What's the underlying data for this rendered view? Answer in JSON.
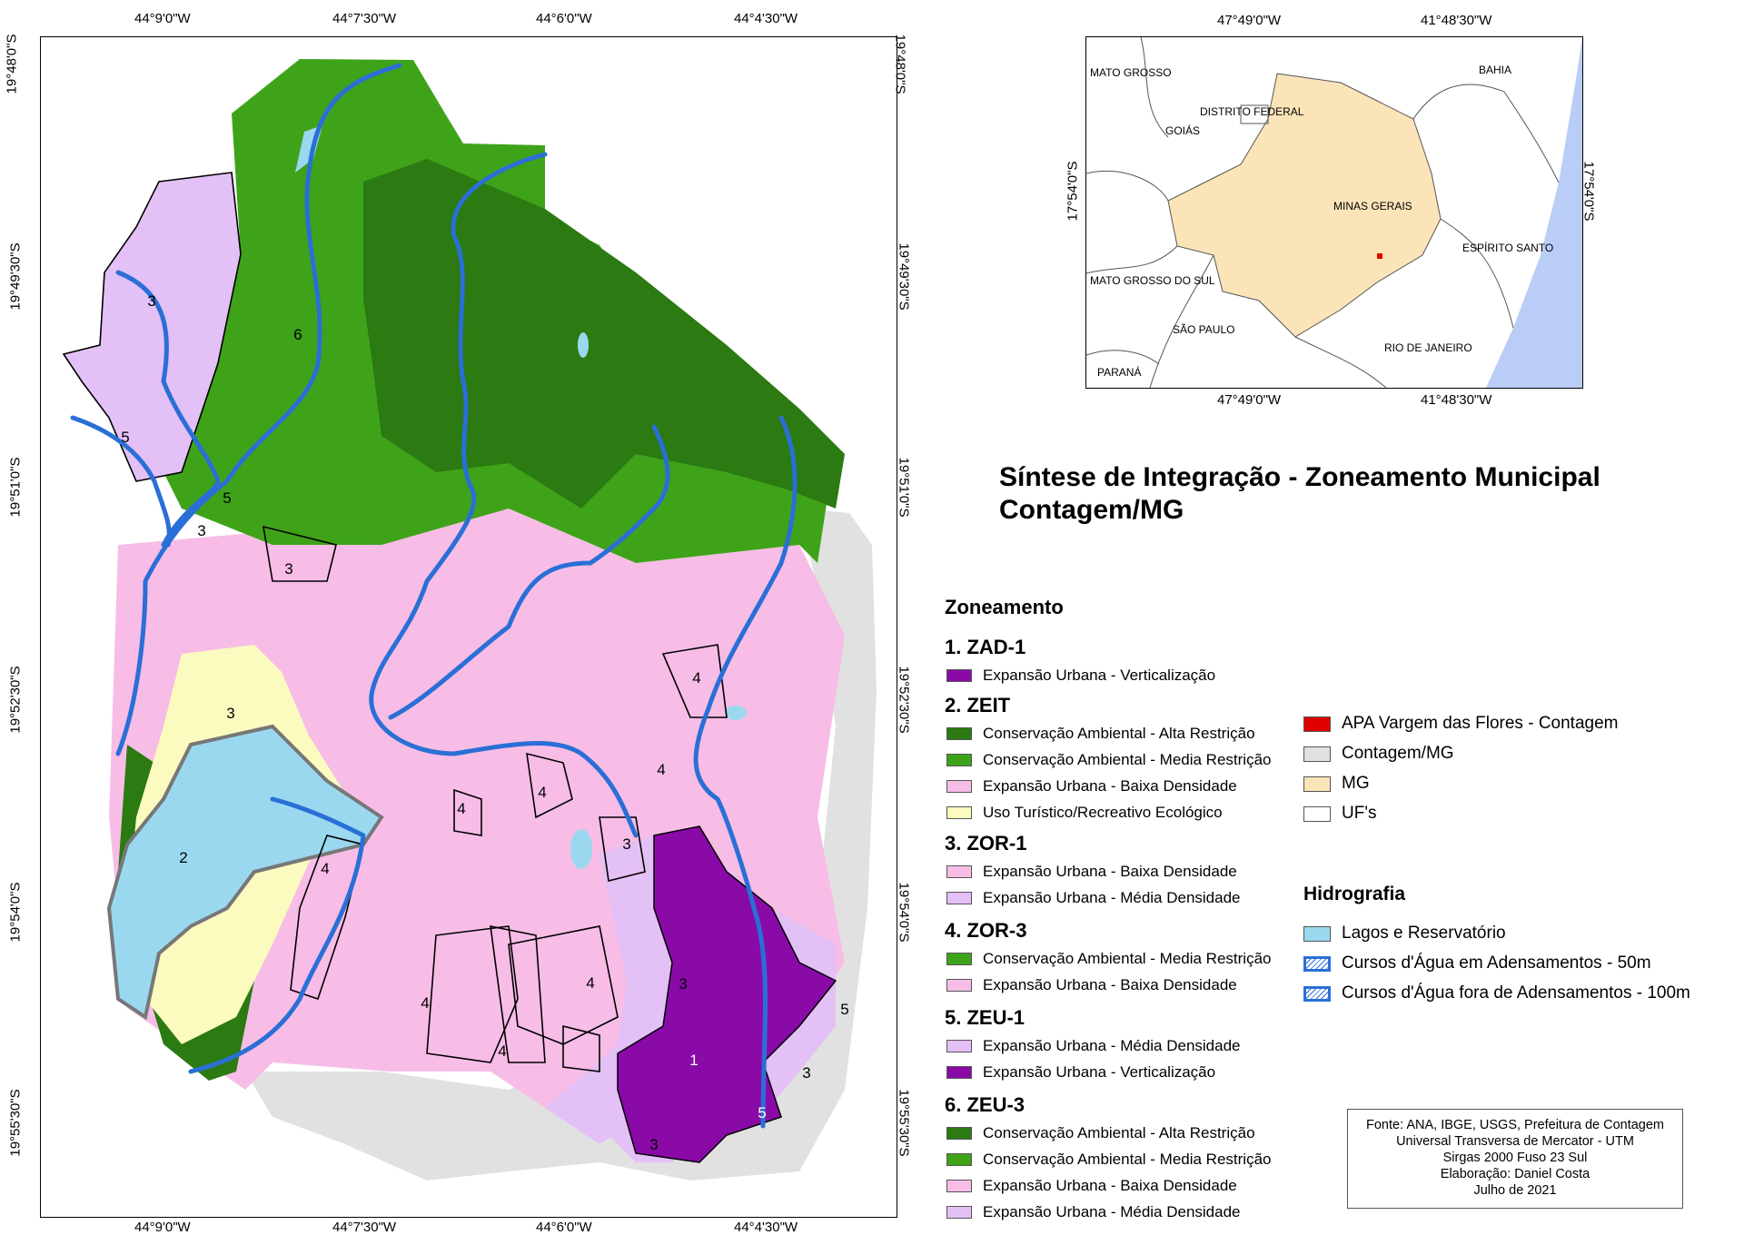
{
  "title": {
    "line1": "Síntese de Integração - Zoneamento Municipal",
    "line2": "Contagem/MG"
  },
  "main_map": {
    "top_ticks": [
      "44°9'0\"W",
      "44°7'30\"W",
      "44°6'0\"W",
      "44°4'30\"W"
    ],
    "bottom_ticks": [
      "44°9'0\"W",
      "44°7'30\"W",
      "44°6'0\"W",
      "44°4'30\"W"
    ],
    "left_ticks": [
      "19°48'0\"S",
      "19°49'30\"S",
      "19°51'0\"S",
      "19°52'30\"S",
      "19°54'0\"S",
      "19°55'30\"S"
    ],
    "right_ticks": [
      "19°48'0\"S",
      "19°49'30\"S",
      "19°51'0\"S",
      "19°52'30\"S",
      "19°54'0\"S",
      "19°55'30\"S"
    ],
    "zone_numbers": [
      "1",
      "2",
      "3",
      "4",
      "5",
      "6"
    ]
  },
  "inset_map": {
    "top_ticks": [
      "47°49'0\"W",
      "41°48'30\"W"
    ],
    "bottom_ticks": [
      "47°49'0\"W",
      "41°48'30\"W"
    ],
    "left_tick": "17°54'0\"S",
    "right_tick": "17°54'0\"S",
    "labels": {
      "mato_grosso": "MATO GROSSO",
      "bahia": "BAHIA",
      "distrito_federal": "DISTRITO FEDERAL",
      "goias": "GOIÁS",
      "minas_gerais": "MINAS GERAIS",
      "espirito_santo": "ESPÍRITO SANTO",
      "mato_grosso_do_sul": "MATO GROSSO DO SUL",
      "sao_paulo": "SÃO PAULO",
      "rio_de_janeiro": "RIO DE JANEIRO",
      "parana": "PARANÁ"
    }
  },
  "legend": {
    "heading": "Zoneamento",
    "zones": [
      {
        "name": "1. ZAD-1",
        "items": [
          {
            "label": "Expansão Urbana - Verticalização",
            "color": "#8a0aa8"
          }
        ]
      },
      {
        "name": "2. ZEIT",
        "items": [
          {
            "label": "Conservação Ambiental - Alta Restrição",
            "color": "#2b7a12"
          },
          {
            "label": "Conservação Ambiental - Media Restrição",
            "color": "#3fa31a"
          },
          {
            "label": "Expansão Urbana - Baixa Densidade",
            "color": "#f7bde6"
          },
          {
            "label": "Uso Turístico/Recreativo Ecológico",
            "color": "#fbfbc0"
          }
        ]
      },
      {
        "name": "3. ZOR-1",
        "items": [
          {
            "label": "Expansão Urbana - Baixa Densidade",
            "color": "#f7bde6"
          },
          {
            "label": "Expansão Urbana - Média Densidade",
            "color": "#e3c0f5"
          }
        ]
      },
      {
        "name": "4. ZOR-3",
        "items": [
          {
            "label": "Conservação Ambiental - Media Restrição",
            "color": "#3fa31a"
          },
          {
            "label": "Expansão Urbana - Baixa Densidade",
            "color": "#f7bde6"
          }
        ]
      },
      {
        "name": "5. ZEU-1",
        "items": [
          {
            "label": "Expansão Urbana - Média Densidade",
            "color": "#e3c0f5"
          },
          {
            "label": "Expansão Urbana - Verticalização",
            "color": "#8a0aa8"
          }
        ]
      },
      {
        "name": "6. ZEU-3",
        "items": [
          {
            "label": "Conservação Ambiental - Alta Restrição",
            "color": "#2b7a12"
          },
          {
            "label": "Conservação Ambiental - Media Restrição",
            "color": "#3fa31a"
          },
          {
            "label": "Expansão Urbana - Baixa Densidade",
            "color": "#f7bde6"
          },
          {
            "label": "Expansão Urbana - Média Densidade",
            "color": "#e3c0f5"
          }
        ]
      }
    ],
    "other": [
      {
        "label": "APA Vargem das Flores - Contagem",
        "color": "#e00000"
      },
      {
        "label": "Contagem/MG",
        "color": "#e1e1e1"
      },
      {
        "label": "MG",
        "color": "#fbe4b8"
      },
      {
        "label": "UF's",
        "color": "#ffffff"
      }
    ],
    "hydro_heading": "Hidrografia",
    "hydro": [
      {
        "label": "Lagos e Reservatório",
        "color": "#9ad8f0"
      },
      {
        "label": "Cursos d'Água em Adensamentos - 50m",
        "color": "#2a6fd6"
      },
      {
        "label": "Cursos d'Água fora de Adensamentos - 100m",
        "color": "#2a6fd6"
      }
    ]
  },
  "credits": [
    "Fonte: ANA, IBGE, USGS, Prefeitura de Contagem",
    "Universal Transversa de Mercator - UTM",
    "Sirgas 2000 Fuso 23 Sul",
    "Elaboração: Daniel Costa",
    "Julho de 2021"
  ],
  "colors": {
    "dark_green": "#2b7a12",
    "med_green": "#3fa31a",
    "pink": "#f7bde6",
    "lilac": "#e3c0f5",
    "purple": "#8a0aa8",
    "yellow": "#fbfbc0",
    "water": "#9ad8f0",
    "river": "#2a6fd6",
    "gray": "#e1e1e1",
    "mg": "#fbe4b8",
    "sea": "#b9cdf7"
  }
}
